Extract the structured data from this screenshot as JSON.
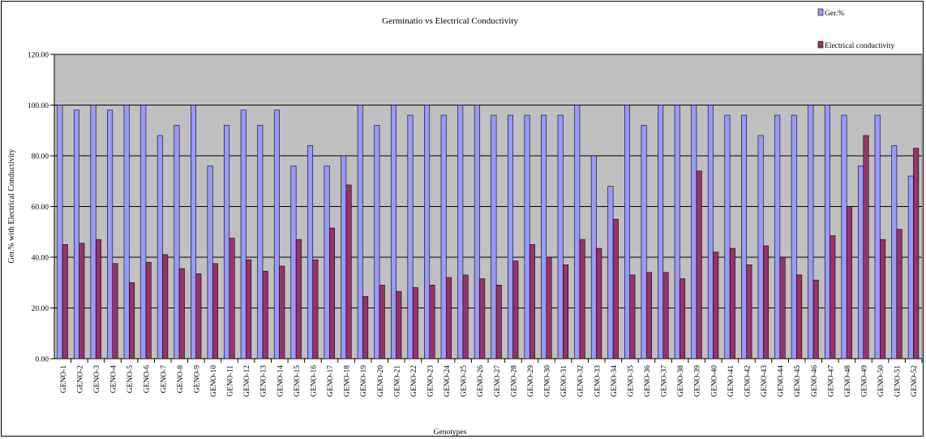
{
  "chart_data": {
    "type": "bar",
    "title": "Germinatio vs Electrical Conductivity",
    "xlabel": "Genotypes",
    "ylabel": "Ger.% with Electrical Conductivity",
    "ylim": [
      0,
      120
    ],
    "yticks": [
      "0.00",
      "20.00",
      "40.00",
      "60.00",
      "80.00",
      "100.00",
      "120.00"
    ],
    "grid": true,
    "legend_position": "top-right",
    "plot_background": "#c0c0c0",
    "categories": [
      "GENO-1",
      "GENO-2",
      "GENO-3",
      "GENO-4",
      "GENO-5",
      "GENO-6",
      "GENO-7",
      "GENO-8",
      "GENO-9",
      "GENO-10",
      "GENO-11",
      "GENO-12",
      "GENO-13",
      "GENO-14",
      "GENO-15",
      "GENO-16",
      "GENO-17",
      "GENO-18",
      "GENO-19",
      "GENO-20",
      "GENO-21",
      "GENO-22",
      "GENO-23",
      "GENO-24",
      "GENO-25",
      "GENO-26",
      "GENO-27",
      "GENO-28",
      "GENO-29",
      "GENO-30",
      "GENO-31",
      "GENO-32",
      "GENO-33",
      "GENO-34",
      "GENO-35",
      "GENO-36",
      "GENO-37",
      "GENO-38",
      "GENO-39",
      "GENO-40",
      "GENO-41",
      "GENO-42",
      "GENO-43",
      "GENO-44",
      "GENO-45",
      "GENO-46",
      "GENO-47",
      "GENO-48",
      "GENO-49",
      "GENO-50",
      "GENO-51",
      "GENO-52"
    ],
    "series": [
      {
        "name": "Ger.%",
        "color": "#9999ff",
        "values": [
          100,
          98,
          100,
          98,
          100,
          100,
          88,
          92,
          100,
          76,
          92,
          98,
          92,
          98,
          76,
          84,
          76,
          80,
          100,
          92,
          100,
          96,
          100,
          96,
          100,
          100,
          96,
          96,
          96,
          96,
          96,
          100,
          80,
          68,
          100,
          92,
          100,
          100,
          100,
          100,
          96,
          96,
          88,
          96,
          96,
          100,
          100,
          96,
          76,
          96,
          84,
          72
        ]
      },
      {
        "name": "Electrical conductivity",
        "color": "#993366",
        "values": [
          45,
          45.5,
          47,
          37.5,
          30,
          38,
          41,
          35.5,
          33.5,
          37.5,
          47.5,
          39,
          34.5,
          36.5,
          47,
          39,
          51.5,
          68.5,
          24.5,
          29,
          26.5,
          28,
          29,
          32,
          33,
          31.5,
          29,
          38.5,
          45,
          40,
          37,
          47,
          43.5,
          55,
          33,
          34,
          34,
          31.5,
          74,
          42,
          43.5,
          37,
          44.5,
          40,
          33,
          31,
          48.5,
          60,
          88,
          47,
          51,
          83
        ]
      }
    ]
  }
}
